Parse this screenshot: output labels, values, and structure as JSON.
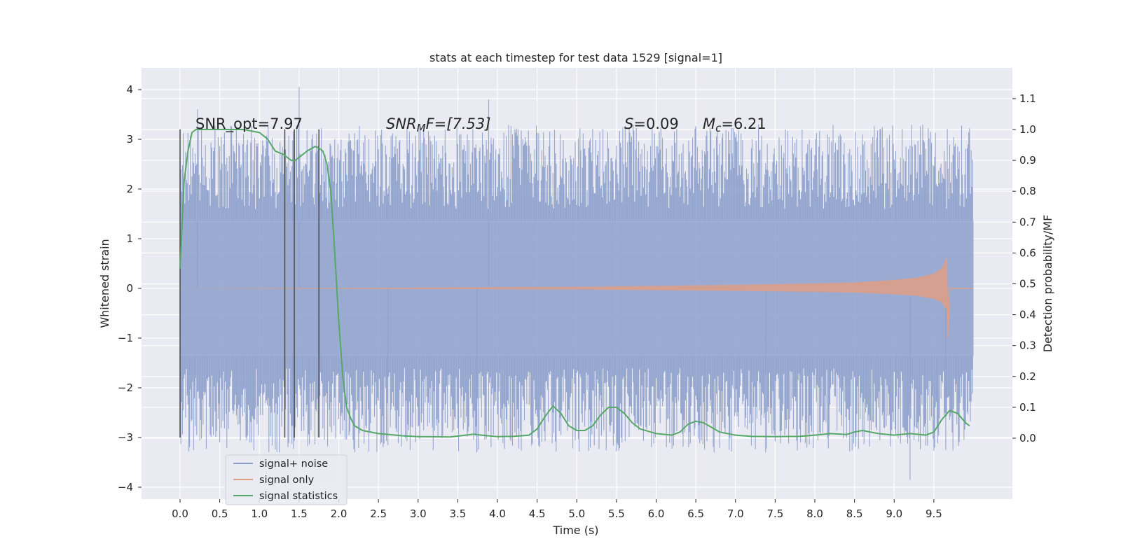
{
  "chart_data": {
    "type": "line",
    "title": "stats at each timestep for test data 1529 [signal=1]",
    "xlabel": "Time (s)",
    "ylabel": "Whitened strain",
    "y2label": "Detection probability/MF",
    "xlim": [
      -0.5,
      10.5
    ],
    "ylim": [
      -4.2,
      4.4
    ],
    "y2lim": [
      -0.2,
      1.2
    ],
    "x_ticks": [
      "0.0",
      "0.5",
      "1.0",
      "1.5",
      "2.0",
      "2.5",
      "3.0",
      "3.5",
      "4.0",
      "4.5",
      "5.0",
      "5.5",
      "6.0",
      "6.5",
      "7.0",
      "7.5",
      "8.0",
      "8.5",
      "9.0",
      "9.5"
    ],
    "y_ticks": [
      "4",
      "3",
      "2",
      "1",
      "0",
      "−1",
      "−2",
      "−3",
      "−4"
    ],
    "y2_ticks": [
      "1.1",
      "1.0",
      "0.9",
      "0.8",
      "0.7",
      "0.6",
      "0.5",
      "0.4",
      "0.3",
      "0.2",
      "0.1",
      "0.0"
    ],
    "grid": true,
    "annotations": {
      "snr_opt": "SNR_opt=7.97",
      "snr_mf_sym": "SNR",
      "snr_mf_sub": "M",
      "snr_mf_rest": "F=[7.53]",
      "s_sym": "S",
      "s_rest": "=0.09",
      "mc_sym": "M",
      "mc_sub": "c",
      "mc_rest": "=6.21"
    },
    "vertical_markers_x": [
      0.0,
      1.32,
      1.44,
      1.75
    ],
    "vertical_markers_yrange": [
      -3.0,
      3.2
    ],
    "series": [
      {
        "name": "signal+ noise",
        "color": "#8c9fcb",
        "x_range": [
          0.0,
          10.0
        ],
        "core_band": [
          -1.35,
          1.35
        ],
        "typical_peak_range": [
          1.6,
          3.3
        ],
        "notable_spikes": [
          {
            "x": 0.22,
            "y": 3.6
          },
          {
            "x": 1.5,
            "y": 4.05
          },
          {
            "x": 3.89,
            "y": 3.8
          },
          {
            "x": 3.74,
            "y": -3.3
          },
          {
            "x": 7.38,
            "y": -3.3
          },
          {
            "x": 9.2,
            "y": -3.85
          },
          {
            "x": 9.65,
            "y": -3.25
          },
          {
            "x": 2.62,
            "y": -3.15
          }
        ]
      },
      {
        "name": "signal only",
        "color": "#dd9f89",
        "description_points": [
          [
            0.0,
            0.0
          ],
          [
            5.0,
            0.03
          ],
          [
            6.0,
            0.05
          ],
          [
            7.0,
            0.07
          ],
          [
            8.0,
            0.1
          ],
          [
            8.5,
            0.12
          ],
          [
            9.0,
            0.17
          ],
          [
            9.3,
            0.22
          ],
          [
            9.5,
            0.3
          ],
          [
            9.6,
            0.4
          ],
          [
            9.66,
            0.62
          ],
          [
            9.68,
            -0.98
          ],
          [
            9.7,
            0.0
          ],
          [
            10.0,
            0.0
          ]
        ]
      },
      {
        "name": "signal statistics",
        "color": "#55a868",
        "axis": "right",
        "x": [
          0.0,
          0.05,
          0.1,
          0.15,
          0.2,
          0.3,
          0.5,
          0.8,
          1.0,
          1.1,
          1.2,
          1.3,
          1.4,
          1.45,
          1.5,
          1.6,
          1.7,
          1.75,
          1.8,
          1.85,
          1.9,
          1.95,
          2.0,
          2.05,
          2.1,
          2.15,
          2.2,
          2.3,
          2.5,
          2.8,
          3.0,
          3.4,
          3.6,
          3.7,
          3.8,
          4.0,
          4.2,
          4.4,
          4.5,
          4.6,
          4.7,
          4.8,
          4.9,
          5.0,
          5.1,
          5.2,
          5.3,
          5.4,
          5.5,
          5.6,
          5.7,
          5.8,
          6.0,
          6.2,
          6.3,
          6.4,
          6.5,
          6.6,
          6.7,
          6.8,
          7.0,
          7.2,
          7.5,
          7.8,
          8.0,
          8.2,
          8.4,
          8.5,
          8.6,
          8.8,
          9.0,
          9.2,
          9.4,
          9.5,
          9.6,
          9.7,
          9.8,
          9.9,
          9.95
        ],
        "values": [
          0.55,
          0.83,
          0.93,
          0.99,
          1.0,
          1.0,
          1.0,
          1.0,
          0.99,
          0.97,
          0.93,
          0.92,
          0.9,
          0.9,
          0.91,
          0.93,
          0.945,
          0.94,
          0.93,
          0.89,
          0.8,
          0.6,
          0.38,
          0.2,
          0.1,
          0.065,
          0.04,
          0.025,
          0.015,
          0.008,
          0.005,
          0.004,
          0.01,
          0.013,
          0.01,
          0.005,
          0.006,
          0.01,
          0.03,
          0.07,
          0.105,
          0.08,
          0.04,
          0.025,
          0.025,
          0.04,
          0.075,
          0.1,
          0.1,
          0.08,
          0.05,
          0.03,
          0.015,
          0.01,
          0.02,
          0.045,
          0.055,
          0.05,
          0.035,
          0.02,
          0.01,
          0.006,
          0.005,
          0.006,
          0.01,
          0.015,
          0.012,
          0.02,
          0.025,
          0.015,
          0.01,
          0.015,
          0.01,
          0.02,
          0.06,
          0.09,
          0.08,
          0.05,
          0.04
        ]
      }
    ],
    "legend_position": "lower-left"
  }
}
